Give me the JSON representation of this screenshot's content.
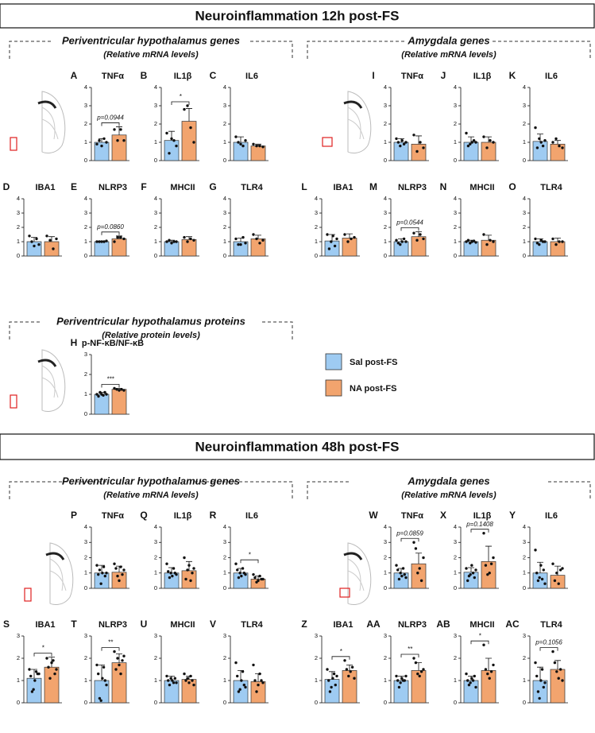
{
  "sections": [
    {
      "title": "Neuroinflammation 12h post-FS"
    },
    {
      "title": "Neuroinflammation 48h post-FS"
    }
  ],
  "groups": [
    {
      "title": "Periventricular hypothalamus genes",
      "subtitle": "(Relative mRNA levels)"
    },
    {
      "title": "Amygdala genes",
      "subtitle": "(Relative mRNA levels)"
    },
    {
      "title": "Periventricular hypothalamus proteins",
      "subtitle": "(Relative protein levels)"
    },
    {
      "title": "Periventricular hypothalamus genes",
      "subtitle": "(Relative mRNA levels)"
    },
    {
      "title": "Amygdala genes",
      "subtitle": "(Relative mRNA levels)"
    }
  ],
  "legend": [
    {
      "name": "Sal post-FS",
      "color": "#9ecbf2"
    },
    {
      "name": "NA post-FS",
      "color": "#f2a46e"
    }
  ],
  "chart_data": [
    {
      "type": "bar",
      "label": "A",
      "title": "TNFα",
      "values": [
        1.0,
        1.4
      ],
      "errors": [
        0.2,
        0.45
      ],
      "points": [
        [
          0.9,
          1.1,
          0.8,
          1.2,
          1.0
        ],
        [
          1.7,
          1.1,
          1.7,
          1.1
        ]
      ],
      "annotation": "p=0.0944",
      "ylim": [
        0,
        4
      ],
      "yticks": [
        0,
        1,
        2,
        3,
        4
      ]
    },
    {
      "type": "bar",
      "label": "B",
      "title": "IL1β",
      "values": [
        1.1,
        2.15
      ],
      "errors": [
        0.5,
        0.7
      ],
      "points": [
        [
          1.5,
          0.4,
          1.2,
          1.1,
          0.8
        ],
        [
          2.8,
          3.0,
          1.8,
          1.0
        ]
      ],
      "annotation": "*",
      "ylim": [
        0,
        4
      ],
      "yticks": [
        0,
        1,
        2,
        3,
        4
      ]
    },
    {
      "type": "bar",
      "label": "C",
      "title": "IL6",
      "values": [
        1.0,
        0.8
      ],
      "errors": [
        0.3,
        0.1
      ],
      "points": [
        [
          1.3,
          1.0,
          0.9,
          0.8,
          1.1
        ],
        [
          0.9,
          0.8,
          0.8,
          0.75
        ]
      ],
      "ylim": [
        0,
        4
      ],
      "yticks": [
        0,
        1,
        2,
        3,
        4
      ]
    },
    {
      "type": "bar",
      "label": "I",
      "title": "TNFα",
      "values": [
        1.0,
        0.9
      ],
      "errors": [
        0.2,
        0.45
      ],
      "points": [
        [
          1.2,
          1.0,
          0.8,
          1.1,
          0.9,
          1.0
        ],
        [
          1.4,
          0.5,
          1.0,
          0.7
        ]
      ],
      "ylim": [
        0,
        4
      ],
      "yticks": [
        0,
        1,
        2,
        3,
        4
      ]
    },
    {
      "type": "bar",
      "label": "J",
      "title": "IL1β",
      "values": [
        1.0,
        1.0
      ],
      "errors": [
        0.3,
        0.3
      ],
      "points": [
        [
          1.5,
          0.8,
          0.9,
          1.0,
          1.1,
          1.0
        ],
        [
          1.3,
          0.7,
          1.1,
          1.0
        ]
      ],
      "ylim": [
        0,
        4
      ],
      "yticks": [
        0,
        1,
        2,
        3,
        4
      ]
    },
    {
      "type": "bar",
      "label": "K",
      "title": "IL6",
      "values": [
        1.05,
        0.9
      ],
      "errors": [
        0.4,
        0.2
      ],
      "points": [
        [
          1.8,
          0.7,
          1.2,
          1.0,
          0.8,
          1.1
        ],
        [
          1.0,
          1.2,
          0.8,
          0.7
        ]
      ],
      "ylim": [
        0,
        4
      ],
      "yticks": [
        0,
        1,
        2,
        3,
        4
      ]
    },
    {
      "type": "bar",
      "label": "D",
      "title": "IBA1",
      "values": [
        1.0,
        1.0
      ],
      "errors": [
        0.3,
        0.35
      ],
      "points": [
        [
          1.4,
          1.0,
          0.7,
          1.2,
          0.8
        ],
        [
          1.4,
          1.1,
          0.5,
          1.2
        ]
      ],
      "ylim": [
        0,
        4
      ],
      "yticks": [
        0,
        1,
        2,
        3,
        4
      ]
    },
    {
      "type": "bar",
      "label": "E",
      "title": "NLRP3",
      "values": [
        1.0,
        1.2
      ],
      "errors": [
        0.05,
        0.2
      ],
      "points": [
        [
          1.0,
          1.0,
          1.0,
          1.0,
          1.05
        ],
        [
          1.0,
          1.3,
          1.3,
          1.2
        ]
      ],
      "annotation": "p=0.0860",
      "ylim": [
        0,
        4
      ],
      "yticks": [
        0,
        1,
        2,
        3,
        4
      ]
    },
    {
      "type": "bar",
      "label": "F",
      "title": "MHCII",
      "values": [
        1.0,
        1.15
      ],
      "errors": [
        0.1,
        0.2
      ],
      "points": [
        [
          1.0,
          1.1,
          0.9,
          1.0,
          1.0
        ],
        [
          1.3,
          1.0,
          1.2,
          1.1
        ]
      ],
      "ylim": [
        0,
        4
      ],
      "yticks": [
        0,
        1,
        2,
        3,
        4
      ]
    },
    {
      "type": "bar",
      "label": "G",
      "title": "TLR4",
      "values": [
        1.0,
        1.2
      ],
      "errors": [
        0.25,
        0.25
      ],
      "points": [
        [
          1.2,
          0.8,
          0.8,
          1.3,
          0.9
        ],
        [
          1.5,
          1.2,
          0.9,
          1.1
        ]
      ],
      "ylim": [
        0,
        4
      ],
      "yticks": [
        0,
        1,
        2,
        3,
        4
      ]
    },
    {
      "type": "bar",
      "label": "L",
      "title": "IBA1",
      "values": [
        1.05,
        1.25
      ],
      "errors": [
        0.45,
        0.3
      ],
      "points": [
        [
          1.5,
          0.5,
          1.0,
          1.4,
          0.7,
          1.2
        ],
        [
          1.5,
          1.0,
          1.2,
          1.3
        ]
      ],
      "ylim": [
        0,
        4
      ],
      "yticks": [
        0,
        1,
        2,
        3,
        4
      ]
    },
    {
      "type": "bar",
      "label": "M",
      "title": "NLRP3",
      "values": [
        1.0,
        1.35
      ],
      "errors": [
        0.2,
        0.35
      ],
      "points": [
        [
          1.1,
          0.9,
          0.8,
          1.0,
          1.2,
          1.0
        ],
        [
          1.6,
          1.1,
          1.5,
          1.2
        ]
      ],
      "annotation": "p=0.0544",
      "ylim": [
        0,
        4
      ],
      "yticks": [
        0,
        1,
        2,
        3,
        4
      ]
    },
    {
      "type": "bar",
      "label": "N",
      "title": "MHCII",
      "values": [
        1.0,
        1.1
      ],
      "errors": [
        0.1,
        0.35
      ],
      "points": [
        [
          1.0,
          1.1,
          0.9,
          1.0,
          1.05,
          0.95
        ],
        [
          1.5,
          0.8,
          1.1,
          1.0
        ]
      ],
      "ylim": [
        0,
        4
      ],
      "yticks": [
        0,
        1,
        2,
        3,
        4
      ]
    },
    {
      "type": "bar",
      "label": "O",
      "title": "TLR4",
      "values": [
        1.0,
        1.0
      ],
      "errors": [
        0.2,
        0.25
      ],
      "points": [
        [
          1.2,
          0.9,
          0.8,
          1.1,
          1.0,
          1.0
        ],
        [
          1.2,
          0.8,
          1.0,
          1.0
        ]
      ],
      "ylim": [
        0,
        4
      ],
      "yticks": [
        0,
        1,
        2,
        3,
        4
      ]
    },
    {
      "type": "bar",
      "label": "H",
      "title": "p-NF-κB/NF-κB",
      "values": [
        1.0,
        1.25
      ],
      "errors": [
        0.1,
        0.05
      ],
      "points": [
        [
          1.0,
          0.9,
          1.1,
          1.0,
          0.95,
          1.1,
          1.0
        ],
        [
          1.3,
          1.25,
          1.2,
          1.25,
          1.2
        ]
      ],
      "annotation": "***",
      "ylim": [
        0,
        3
      ],
      "yticks": [
        0,
        1,
        2,
        3
      ]
    },
    {
      "type": "bar",
      "label": "P",
      "title": "TNFα",
      "values": [
        1.0,
        1.05
      ],
      "errors": [
        0.5,
        0.4
      ],
      "points": [
        [
          1.5,
          0.9,
          1.2,
          0.3,
          1.0,
          1.4,
          0.8,
          1.0
        ],
        [
          1.6,
          1.3,
          0.8,
          0.5,
          1.4,
          0.9,
          1.2
        ]
      ],
      "ylim": [
        0,
        4
      ],
      "yticks": [
        0,
        1,
        2,
        3,
        4
      ]
    },
    {
      "type": "bar",
      "label": "Q",
      "title": "IL1β",
      "values": [
        1.0,
        1.15
      ],
      "errors": [
        0.35,
        0.6
      ],
      "points": [
        [
          1.6,
          1.1,
          0.7,
          1.0,
          0.8,
          1.3,
          1.0,
          0.9
        ],
        [
          2.0,
          0.6,
          1.2,
          1.5,
          0.5,
          1.0,
          1.3
        ]
      ],
      "ylim": [
        0,
        4
      ],
      "yticks": [
        0,
        1,
        2,
        3,
        4
      ]
    },
    {
      "type": "bar",
      "label": "R",
      "title": "IL6",
      "values": [
        1.0,
        0.6
      ],
      "errors": [
        0.3,
        0.2
      ],
      "points": [
        [
          1.6,
          1.2,
          0.7,
          1.0,
          0.8,
          1.3,
          1.0,
          0.9
        ],
        [
          0.9,
          0.7,
          0.4,
          0.5,
          0.8,
          0.6,
          0.6
        ]
      ],
      "annotation": "*",
      "ylim": [
        0,
        4
      ],
      "yticks": [
        0,
        1,
        2,
        3,
        4
      ]
    },
    {
      "type": "bar",
      "label": "W",
      "title": "TNFα",
      "values": [
        1.0,
        1.6
      ],
      "errors": [
        0.3,
        0.7
      ],
      "points": [
        [
          1.5,
          1.2,
          0.6,
          1.0,
          0.8,
          1.3,
          0.9,
          0.7
        ],
        [
          3.0,
          2.6,
          1.0,
          1.3,
          0.5,
          2.0
        ]
      ],
      "annotation": "p=0.0859",
      "ylim": [
        0,
        4
      ],
      "yticks": [
        0,
        1,
        2,
        3,
        4
      ]
    },
    {
      "type": "bar",
      "label": "X",
      "title": "IL1β",
      "values": [
        1.05,
        1.75
      ],
      "errors": [
        0.3,
        1.0
      ],
      "points": [
        [
          1.3,
          0.5,
          0.8,
          0.9,
          1.5,
          1.0,
          0.7,
          1.2
        ],
        [
          3.6,
          1.5,
          0.9,
          1.0,
          1.6,
          2.0
        ]
      ],
      "annotation": "p=0.1408",
      "ylim": [
        0,
        4
      ],
      "yticks": [
        0,
        1,
        2,
        3,
        4
      ]
    },
    {
      "type": "bar",
      "label": "Y",
      "title": "IL6",
      "values": [
        1.0,
        0.85
      ],
      "errors": [
        0.7,
        0.6
      ],
      "points": [
        [
          2.5,
          1.0,
          0.5,
          0.7,
          1.5,
          0.6,
          1.2,
          0.3
        ],
        [
          1.6,
          0.5,
          1.0,
          0.3,
          1.2,
          1.3
        ]
      ],
      "ylim": [
        0,
        4
      ],
      "yticks": [
        0,
        1,
        2,
        3,
        4
      ]
    },
    {
      "type": "bar",
      "label": "S",
      "title": "IBA1",
      "values": [
        1.1,
        1.6
      ],
      "errors": [
        0.4,
        0.45
      ],
      "points": [
        [
          1.5,
          1.2,
          0.5,
          0.6,
          1.0,
          1.4,
          1.3,
          1.3
        ],
        [
          2.0,
          1.6,
          1.1,
          1.8,
          1.9,
          1.3,
          1.5
        ]
      ],
      "annotation": "*",
      "ylim": [
        0,
        3
      ],
      "yticks": [
        0,
        1,
        2,
        3
      ]
    },
    {
      "type": "bar",
      "label": "T",
      "title": "NLRP3",
      "values": [
        1.0,
        1.8
      ],
      "errors": [
        0.7,
        0.4
      ],
      "points": [
        [
          1.7,
          1.3,
          0.2,
          0.1,
          1.1,
          1.6,
          1.0,
          0.8
        ],
        [
          2.3,
          1.5,
          2.0,
          1.7,
          1.3,
          1.9,
          2.1
        ]
      ],
      "annotation": "**",
      "ylim": [
        0,
        3
      ],
      "yticks": [
        0,
        1,
        2,
        3
      ]
    },
    {
      "type": "bar",
      "label": "U",
      "title": "MHCII",
      "values": [
        1.0,
        1.05
      ],
      "errors": [
        0.2,
        0.15
      ],
      "points": [
        [
          1.2,
          1.0,
          0.8,
          1.1,
          1.0,
          0.9,
          1.1,
          0.9
        ],
        [
          1.3,
          1.0,
          1.1,
          0.9,
          1.2,
          1.0,
          0.8
        ]
      ],
      "ylim": [
        0,
        3
      ],
      "yticks": [
        0,
        1,
        2,
        3
      ]
    },
    {
      "type": "bar",
      "label": "V",
      "title": "TLR4",
      "values": [
        1.0,
        0.95
      ],
      "errors": [
        0.45,
        0.35
      ],
      "points": [
        [
          1.8,
          1.2,
          0.5,
          0.6,
          1.0,
          1.4,
          0.8,
          0.7
        ],
        [
          1.7,
          1.0,
          0.5,
          0.8,
          1.3,
          1.0,
          0.9
        ]
      ],
      "ylim": [
        0,
        3
      ],
      "yticks": [
        0,
        1,
        2,
        3
      ]
    },
    {
      "type": "bar",
      "label": "Z",
      "title": "IBA1",
      "values": [
        1.05,
        1.45
      ],
      "errors": [
        0.35,
        0.25
      ],
      "points": [
        [
          1.5,
          1.0,
          0.5,
          0.7,
          1.1,
          1.3,
          0.8,
          1.2
        ],
        [
          1.9,
          1.5,
          1.2,
          1.4,
          1.6,
          1.1
        ]
      ],
      "annotation": "*",
      "ylim": [
        0,
        3
      ],
      "yticks": [
        0,
        1,
        2,
        3
      ]
    },
    {
      "type": "bar",
      "label": "AA",
      "title": "NLRP3",
      "values": [
        1.0,
        1.45
      ],
      "errors": [
        0.2,
        0.35
      ],
      "points": [
        [
          1.2,
          1.0,
          0.7,
          0.9,
          1.1,
          1.0,
          1.0,
          1.2
        ],
        [
          2.0,
          1.8,
          1.3,
          1.2,
          1.4,
          1.5
        ]
      ],
      "annotation": "**",
      "ylim": [
        0,
        3
      ],
      "yticks": [
        0,
        1,
        2,
        3
      ]
    },
    {
      "type": "bar",
      "label": "AB",
      "title": "MHCII",
      "values": [
        1.0,
        1.45
      ],
      "errors": [
        0.2,
        0.55
      ],
      "points": [
        [
          1.3,
          1.0,
          0.8,
          0.9,
          1.1,
          1.0,
          1.2,
          0.7
        ],
        [
          2.6,
          1.5,
          1.3,
          1.1,
          1.4,
          1.7
        ]
      ],
      "annotation": "*",
      "ylim": [
        0,
        3
      ],
      "yticks": [
        0,
        1,
        2,
        3
      ]
    },
    {
      "type": "bar",
      "label": "AC",
      "title": "TLR4",
      "values": [
        1.0,
        1.5
      ],
      "errors": [
        0.6,
        0.4
      ],
      "points": [
        [
          1.8,
          1.2,
          0.5,
          0.2,
          1.0,
          1.5,
          0.7,
          0.9
        ],
        [
          2.3,
          1.8,
          1.4,
          1.1,
          1.5,
          1.0
        ]
      ],
      "annotation": "p=0.1056",
      "ylim": [
        0,
        3
      ],
      "yticks": [
        0,
        1,
        2,
        3
      ]
    }
  ]
}
